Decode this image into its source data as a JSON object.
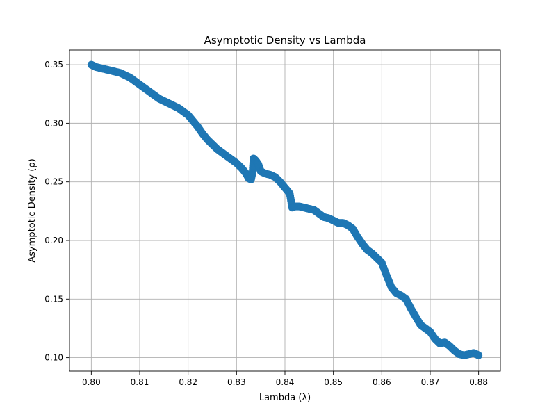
{
  "chart_data": {
    "type": "scatter",
    "title": "Asymptotic Density vs Lambda",
    "xlabel": "Lambda (λ)",
    "ylabel": "Asymptotic Density (ρ)",
    "xlim": [
      0.7955,
      0.8845
    ],
    "ylim": [
      0.0885,
      0.3625
    ],
    "grid": true,
    "marker_color": "#1f77b4",
    "x_ticks": [
      {
        "value": 0.8,
        "label": "0.80"
      },
      {
        "value": 0.81,
        "label": "0.81"
      },
      {
        "value": 0.82,
        "label": "0.82"
      },
      {
        "value": 0.83,
        "label": "0.83"
      },
      {
        "value": 0.84,
        "label": "0.84"
      },
      {
        "value": 0.85,
        "label": "0.85"
      },
      {
        "value": 0.86,
        "label": "0.86"
      },
      {
        "value": 0.87,
        "label": "0.87"
      },
      {
        "value": 0.88,
        "label": "0.88"
      }
    ],
    "y_ticks": [
      {
        "value": 0.1,
        "label": "0.10"
      },
      {
        "value": 0.15,
        "label": "0.15"
      },
      {
        "value": 0.2,
        "label": "0.20"
      },
      {
        "value": 0.25,
        "label": "0.25"
      },
      {
        "value": 0.3,
        "label": "0.30"
      },
      {
        "value": 0.35,
        "label": "0.35"
      }
    ],
    "x": [
      0.8,
      0.801,
      0.802,
      0.803,
      0.804,
      0.805,
      0.806,
      0.807,
      0.808,
      0.809,
      0.81,
      0.811,
      0.812,
      0.813,
      0.814,
      0.815,
      0.816,
      0.817,
      0.818,
      0.819,
      0.82,
      0.821,
      0.822,
      0.823,
      0.824,
      0.825,
      0.826,
      0.827,
      0.828,
      0.829,
      0.83,
      0.831,
      0.832,
      0.8325,
      0.833,
      0.8333,
      0.8335,
      0.834,
      0.8345,
      0.835,
      0.836,
      0.837,
      0.838,
      0.839,
      0.84,
      0.841,
      0.8415,
      0.842,
      0.843,
      0.844,
      0.845,
      0.846,
      0.847,
      0.848,
      0.849,
      0.85,
      0.851,
      0.852,
      0.853,
      0.854,
      0.855,
      0.856,
      0.857,
      0.858,
      0.859,
      0.86,
      0.861,
      0.862,
      0.863,
      0.864,
      0.865,
      0.866,
      0.867,
      0.868,
      0.869,
      0.87,
      0.871,
      0.872,
      0.873,
      0.874,
      0.875,
      0.876,
      0.877,
      0.878,
      0.879,
      0.88
    ],
    "y": [
      0.35,
      0.348,
      0.347,
      0.346,
      0.345,
      0.344,
      0.343,
      0.341,
      0.339,
      0.336,
      0.333,
      0.33,
      0.327,
      0.324,
      0.321,
      0.319,
      0.317,
      0.315,
      0.313,
      0.31,
      0.307,
      0.302,
      0.297,
      0.291,
      0.286,
      0.282,
      0.278,
      0.275,
      0.272,
      0.269,
      0.266,
      0.262,
      0.257,
      0.253,
      0.252,
      0.258,
      0.27,
      0.268,
      0.265,
      0.259,
      0.257,
      0.256,
      0.254,
      0.25,
      0.245,
      0.24,
      0.228,
      0.229,
      0.229,
      0.228,
      0.227,
      0.226,
      0.223,
      0.22,
      0.219,
      0.217,
      0.215,
      0.215,
      0.213,
      0.21,
      0.203,
      0.197,
      0.192,
      0.189,
      0.185,
      0.181,
      0.17,
      0.16,
      0.155,
      0.153,
      0.15,
      0.142,
      0.135,
      0.128,
      0.125,
      0.122,
      0.116,
      0.112,
      0.113,
      0.11,
      0.106,
      0.103,
      0.102,
      0.103,
      0.104,
      0.102
    ]
  }
}
